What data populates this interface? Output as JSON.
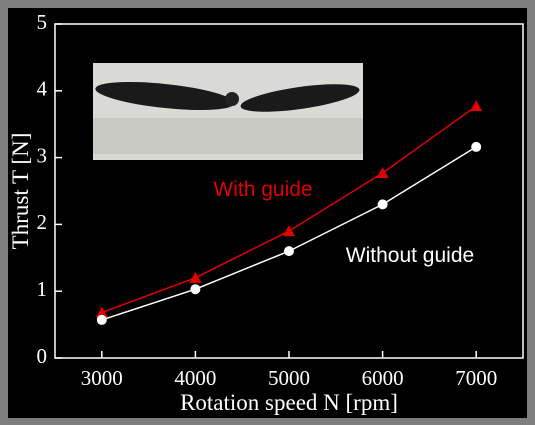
{
  "chart_data": {
    "type": "line",
    "x_label": "Rotation speed N [rpm]",
    "y_label": "Thrust T [N]",
    "x": [
      3000,
      4000,
      5000,
      6000,
      7000
    ],
    "series": [
      {
        "name": "With guide",
        "color": "#e00000",
        "marker": "triangle",
        "values": [
          0.68,
          1.2,
          1.9,
          2.77,
          3.77
        ]
      },
      {
        "name": "Without guide",
        "color": "#ffffff",
        "marker": "circle",
        "values": [
          0.57,
          1.03,
          1.6,
          2.3,
          3.16
        ]
      }
    ],
    "xlim": [
      2500,
      7500
    ],
    "xticks": [
      3000,
      4000,
      5000,
      6000,
      7000
    ],
    "ylim": [
      0,
      5
    ],
    "yticks": [
      0,
      1,
      2,
      3,
      4,
      5
    ]
  }
}
